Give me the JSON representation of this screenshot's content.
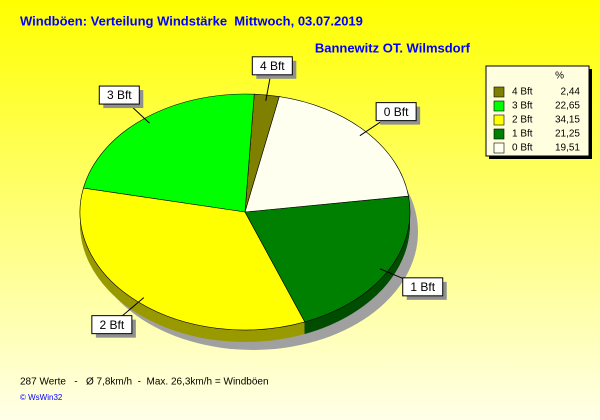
{
  "chart_data": {
    "type": "pie",
    "title": "Windböen: Verteilung Windstärke  Mittwoch, 03.07.2019",
    "subtitle": "Bannewitz OT. Wilmsdorf",
    "legend_title": "%",
    "categories": [
      "4 Bft",
      "3 Bft",
      "2 Bft",
      "1 Bft",
      "0 Bft"
    ],
    "values": [
      2.44,
      22.65,
      34.15,
      21.25,
      19.51
    ],
    "value_labels": [
      "2,44",
      "22,65",
      "34,15",
      "21,25",
      "19,51"
    ],
    "colors": [
      "#808000",
      "#00ff00",
      "#ffff00",
      "#008000",
      "#fffff0"
    ],
    "footer": "287 Werte   -   Ø 7,8km/h  -  Max. 26,3km/h = Windböen",
    "credit": "© WsWin32"
  }
}
